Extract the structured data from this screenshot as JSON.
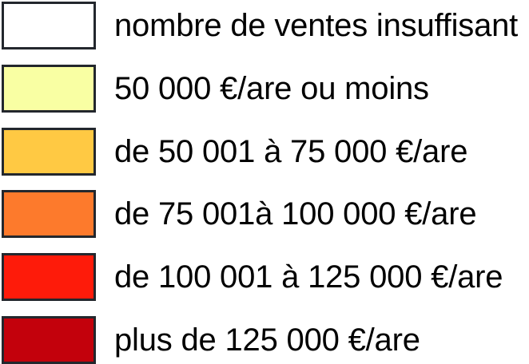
{
  "legend": {
    "background": "#ffffff",
    "swatch_border_color": "#23272d",
    "text_color": "#000000",
    "items": [
      {
        "label": "nombre de ventes insuffisant",
        "color": "#ffffff"
      },
      {
        "label": "50 000 €/are ou moins",
        "color": "#f9ffa3"
      },
      {
        "label": "de 50 001 à 75 000 €/are",
        "color": "#ffc943"
      },
      {
        "label": "de 75 001à 100 000 €/are",
        "color": "#fd7a2c"
      },
      {
        "label": "de 100 001 à 125 000 €/are",
        "color": "#fe1b0a"
      },
      {
        "label": "plus de 125 000 €/are",
        "color": "#c3010c"
      }
    ]
  }
}
